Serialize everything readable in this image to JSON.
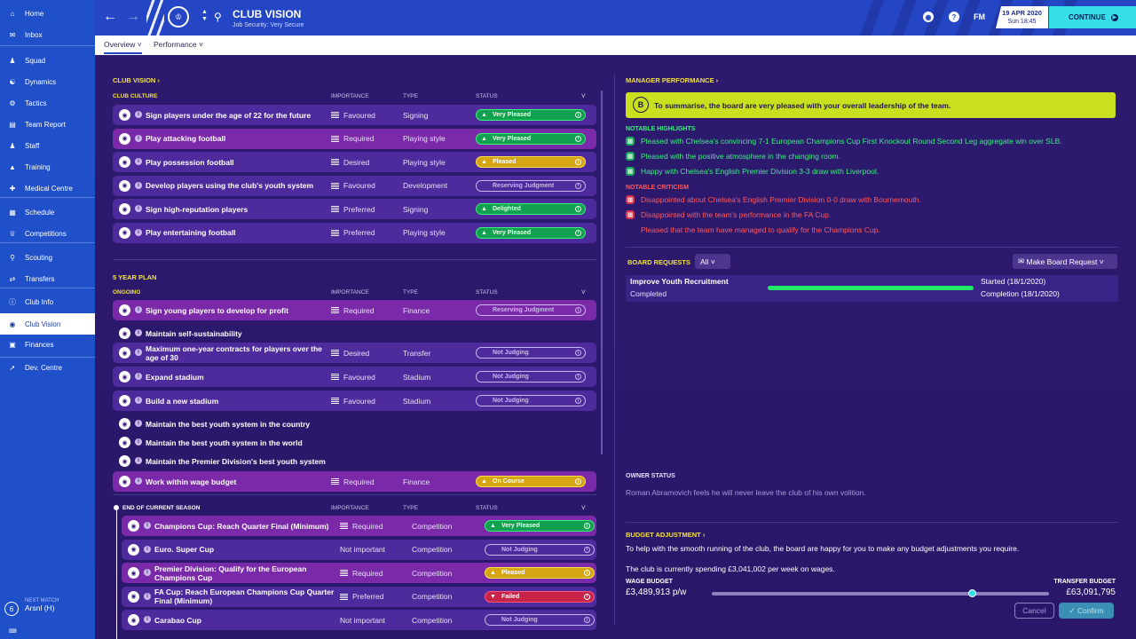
{
  "sidebar": {
    "items": [
      {
        "label": "Home",
        "icon": "home-icon"
      },
      {
        "label": "Inbox",
        "icon": "inbox-icon"
      },
      {
        "label": "Squad",
        "icon": "squad-icon"
      },
      {
        "label": "Dynamics",
        "icon": "dynamics-icon"
      },
      {
        "label": "Tactics",
        "icon": "tactics-icon"
      },
      {
        "label": "Team Report",
        "icon": "report-icon"
      },
      {
        "label": "Staff",
        "icon": "staff-icon"
      },
      {
        "label": "Training",
        "icon": "training-icon"
      },
      {
        "label": "Medical Centre",
        "icon": "medical-icon"
      },
      {
        "label": "Schedule",
        "icon": "calendar-icon"
      },
      {
        "label": "Competitions",
        "icon": "trophy-icon"
      },
      {
        "label": "Scouting",
        "icon": "search-icon"
      },
      {
        "label": "Transfers",
        "icon": "transfer-icon"
      },
      {
        "label": "Club Info",
        "icon": "info-icon"
      },
      {
        "label": "Club Vision",
        "icon": "vision-icon"
      },
      {
        "label": "Finances",
        "icon": "finance-icon"
      },
      {
        "label": "Dev. Centre",
        "icon": "dev-icon"
      }
    ],
    "next_match": {
      "label": "NEXT MATCH",
      "opponent": "Arsnl (H)",
      "badge": "6"
    }
  },
  "topbar": {
    "title": "CLUB VISION",
    "subtitle": "Job Security: Very Secure",
    "fm_label": "FM",
    "date": "19 APR 2020",
    "time": "Sun 18:45",
    "continue": "CONTINUE"
  },
  "subtabs": {
    "overview": "Overview",
    "performance": "Performance"
  },
  "left": {
    "club_vision": "CLUB VISION",
    "culture_title": "CLUB CULTURE",
    "plan_title": "5 YEAR PLAN",
    "ongoing_title": "ONGOING",
    "season_title": "END OF CURRENT SEASON",
    "col_importance": "IMPORTANCE",
    "col_type": "TYPE",
    "col_status": "STATUS",
    "culture": [
      {
        "name": "Sign players under the age of 22 for the future",
        "importance": "Favoured",
        "type": "Signing",
        "status": "Very Pleased",
        "color": "green",
        "req": false
      },
      {
        "name": "Play attacking football",
        "importance": "Required",
        "type": "Playing style",
        "status": "Very Pleased",
        "color": "green",
        "req": true
      },
      {
        "name": "Play possession football",
        "importance": "Desired",
        "type": "Playing style",
        "status": "Pleased",
        "color": "yellow",
        "req": false
      },
      {
        "name": "Develop players using the club's youth system",
        "importance": "Favoured",
        "type": "Development",
        "status": "Reserving Judgment",
        "color": "none",
        "req": false
      },
      {
        "name": "Sign high-reputation players",
        "importance": "Preferred",
        "type": "Signing",
        "status": "Delighted",
        "color": "green",
        "req": false
      },
      {
        "name": "Play entertaining football",
        "importance": "Preferred",
        "type": "Playing style",
        "status": "Very Pleased",
        "color": "green",
        "req": false
      }
    ],
    "ongoing": [
      {
        "name": "Sign young players to develop for profit",
        "importance": "Required",
        "type": "Finance",
        "status": "Reserving Judgment",
        "color": "none",
        "req": true
      },
      {
        "name": "Maintain self-sustainability",
        "importance": "",
        "type": "",
        "status": "",
        "color": "none",
        "plain": true
      },
      {
        "name": "Maximum one-year contracts for players over the age of 30",
        "importance": "Desired",
        "type": "Transfer",
        "status": "Not Judging",
        "color": "none",
        "req": false
      },
      {
        "name": "Expand stadium",
        "importance": "Favoured",
        "type": "Stadium",
        "status": "Not Judging",
        "color": "none",
        "req": false
      },
      {
        "name": "Build a new stadium",
        "importance": "Favoured",
        "type": "Stadium",
        "status": "Not Judging",
        "color": "none",
        "req": false
      },
      {
        "name": "Maintain the best youth system in the country",
        "importance": "",
        "type": "",
        "status": "",
        "color": "none",
        "plain": true
      },
      {
        "name": "Maintain the best youth system in the world",
        "importance": "",
        "type": "",
        "status": "",
        "color": "none",
        "plain": true
      },
      {
        "name": "Maintain the Premier Division's best youth system",
        "importance": "",
        "type": "",
        "status": "",
        "color": "none",
        "plain": true
      },
      {
        "name": "Work within wage budget",
        "importance": "Required",
        "type": "Finance",
        "status": "On Course",
        "color": "yellow",
        "req": true
      }
    ],
    "season": [
      {
        "name": "Champions Cup: Reach Quarter Final (Minimum)",
        "importance": "Required",
        "type": "Competition",
        "status": "Very Pleased",
        "color": "green",
        "req": true
      },
      {
        "name": "Euro. Super Cup",
        "importance": "Not important",
        "type": "Competition",
        "status": "Not Judging",
        "color": "none",
        "req": false
      },
      {
        "name": "Premier Division: Qualify for the European Champions Cup",
        "importance": "Required",
        "type": "Competition",
        "status": "Pleased",
        "color": "yellow",
        "req": true
      },
      {
        "name": "FA Cup: Reach European Champions Cup Quarter Final (Minimum)",
        "importance": "Preferred",
        "type": "Competition",
        "status": "Failed",
        "color": "red",
        "req": false
      },
      {
        "name": "Carabao Cup",
        "importance": "Not important",
        "type": "Competition",
        "status": "Not Judging",
        "color": "none",
        "req": false
      }
    ]
  },
  "right": {
    "manager_perf": "MANAGER PERFORMANCE",
    "grade": "B",
    "summary": "To summarise, the board are very pleased with your overall leadership of the team.",
    "highlights_title": "NOTABLE HIGHLIGHTS",
    "highlights": [
      "Pleased with Chelsea's convincing 7-1 European Champions Cup First Knockout Round Second Leg aggregate win over SLB.",
      "Pleased with the positive atmosphere in the changing room.",
      "Happy with Chelsea's English Premier Division 3-3 draw with Liverpool."
    ],
    "criticism_title": "NOTABLE CRITICISM",
    "criticism": [
      "Disappointed about Chelsea's English Premier Division 0-0 draw with Bournemouth.",
      "Disappointed with the team's performance in the FA Cup.",
      "Pleased that the team have managed to qualify for the Champions Cup."
    ],
    "board_requests": "BOARD REQUESTS",
    "filter": "All",
    "make_request": "Make Board Request",
    "request": {
      "name": "Improve Youth Recruitment",
      "state": "Completed",
      "started": "Started (18/1/2020)",
      "completion": "Completion (18/1/2020)",
      "progress": 1.0
    },
    "owner_title": "OWNER STATUS",
    "owner_text": "Roman Abramovich feels he will never leave the club of his own volition.",
    "budget_title": "BUDGET ADJUSTMENT",
    "budget_text": "To help with the smooth running of the club, the board are happy for you to make any budget adjustments you require.",
    "spending_text": "The club is currently spending £3,041,002 per week on wages.",
    "wage_label": "WAGE BUDGET",
    "wage_value": "£3,489,913 p/w",
    "transfer_label": "TRANSFER BUDGET",
    "transfer_value": "£63,091,795",
    "slider_position": 0.76,
    "cancel": "Cancel",
    "confirm": "Confirm"
  },
  "colors": {
    "sidebar": "#1f4fc9",
    "accent_yellow": "#f3e23a",
    "highlight_green": "#3af07e",
    "criticism_red": "#ff5a5a",
    "continue": "#37e0e8"
  }
}
